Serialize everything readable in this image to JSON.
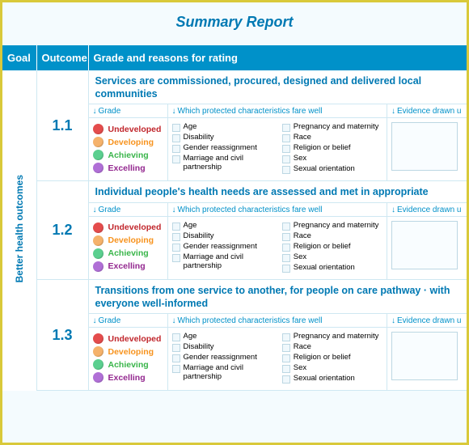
{
  "title": "Summary Report",
  "headers": {
    "goal": "Goal",
    "outcome": "Outcome",
    "detail": "Grade and reasons for rating"
  },
  "goal_label": "Better health outcomes",
  "subheaders": {
    "grade": "Grade",
    "chars": "Which protected characteristics fare well",
    "evid": "Evidence drawn u"
  },
  "grades": [
    {
      "label": "Undeveloped",
      "color": "#c1272d"
    },
    {
      "label": "Developing",
      "color": "#f7931e"
    },
    {
      "label": "Achieving",
      "color": "#39b54a"
    },
    {
      "label": "Excelling",
      "color": "#93278f"
    }
  ],
  "grade_dots": [
    "#e44c4c",
    "#f5b26b",
    "#5bcf8f",
    "#b06fd6"
  ],
  "characteristics_col1": [
    "Age",
    "Disability",
    "Gender reassignment",
    "Marriage and civil partnership"
  ],
  "characteristics_col2": [
    "Pregnancy and maternity",
    "Race",
    "Religion or belief",
    "Sex",
    "Sexual orientation"
  ],
  "rows": [
    {
      "num": "1.1",
      "title": "Services are commissioned, procured, designed and delivered local communities"
    },
    {
      "num": "1.2",
      "title": "Individual people's health needs are assessed and met in appropriate"
    },
    {
      "num": "1.3",
      "title": "Transitions from one service to another, for people on care pathway · with everyone well-informed"
    }
  ],
  "colors": {
    "border": "#d9c93a",
    "header_bg": "#0091c9",
    "accent": "#0079b3",
    "page_bg": "#f4fbfe",
    "cell_border": "#cfe8f2"
  }
}
